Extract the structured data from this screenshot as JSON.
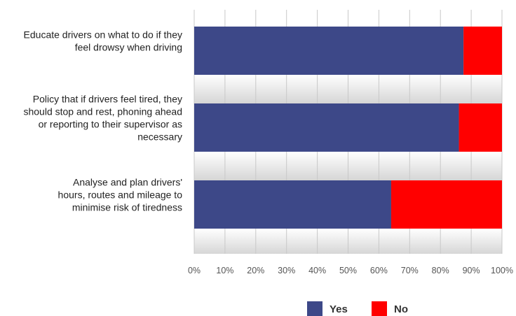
{
  "chart_data": {
    "type": "bar",
    "orientation": "horizontal",
    "stacked": true,
    "categories": [
      "Educate drivers on what to do if they feel drowsy when driving",
      "Policy that if drivers feel tired, they should stop and rest, phoning ahead or reporting to their supervisor as necessary",
      "Analyse and plan drivers' hours, routes and mileage to minimise risk of tiredness"
    ],
    "category_lines": [
      [
        "Educate drivers on what to do if they",
        "feel drowsy when driving"
      ],
      [
        "Policy that if drivers feel tired, they",
        "should stop and rest, phoning ahead",
        "or reporting to their supervisor as",
        "necessary"
      ],
      [
        "Analyse and plan drivers'",
        "hours, routes and mileage to",
        "minimise risk of tiredness"
      ]
    ],
    "series": [
      {
        "name": "Yes",
        "color": "#3d4888",
        "values": [
          87.5,
          86,
          64
        ]
      },
      {
        "name": "No",
        "color": "#ff0000",
        "values": [
          12.5,
          14,
          36
        ]
      }
    ],
    "x_ticks": [
      "0%",
      "10%",
      "20%",
      "30%",
      "40%",
      "50%",
      "60%",
      "70%",
      "80%",
      "90%",
      "100%"
    ],
    "xlim": [
      0,
      100
    ],
    "grid": true,
    "legend_position": "bottom",
    "title": "",
    "xlabel": "",
    "ylabel": ""
  }
}
